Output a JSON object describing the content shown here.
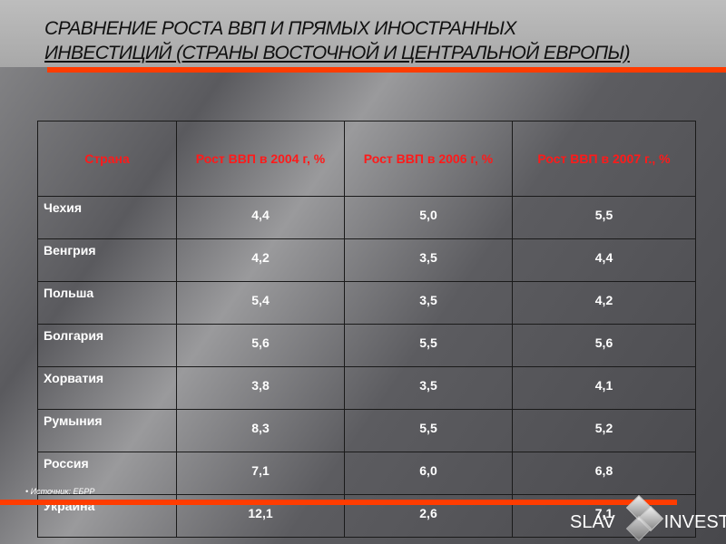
{
  "title": {
    "line1": "СРАВНЕНИЕ РОСТА ВВП И ПРЯМЫХ ИНОСТРАННЫХ",
    "line2": "ИНВЕСТИЦИЙ  (СТРАНЫ ВОСТОЧНОЙ И ЦЕНТРАЛЬНОЙ ЕВРОПЫ)"
  },
  "table": {
    "headers": [
      "Страна",
      "Рост ВВП в 2004 г, %",
      "Рост ВВП в 2006 г, %",
      "Рост ВВП в 2007 г., %"
    ],
    "rows": [
      [
        "Чехия",
        "4,4",
        "5,0",
        "5,5"
      ],
      [
        "Венгрия",
        "4,2",
        "3,5",
        "4,4"
      ],
      [
        "Польша",
        "5,4",
        "3,5",
        "4,2"
      ],
      [
        "Болгария",
        "5,6",
        "5,5",
        "5,6"
      ],
      [
        "Хорватия",
        "3,8",
        "3,5",
        "4,1"
      ],
      [
        "Румыния",
        "8,3",
        "5,5",
        "5,2"
      ],
      [
        "Россия",
        "7,1",
        "6,0",
        "6,8"
      ],
      [
        "Украина",
        "12,1",
        "2,6",
        "7,1"
      ]
    ]
  },
  "source": "• Источник: ЕБРР",
  "logo": {
    "left": "SLAV",
    "right": "INVEST"
  },
  "colors": {
    "accent": "#ff3c00",
    "header_text": "#ff1a1a"
  }
}
